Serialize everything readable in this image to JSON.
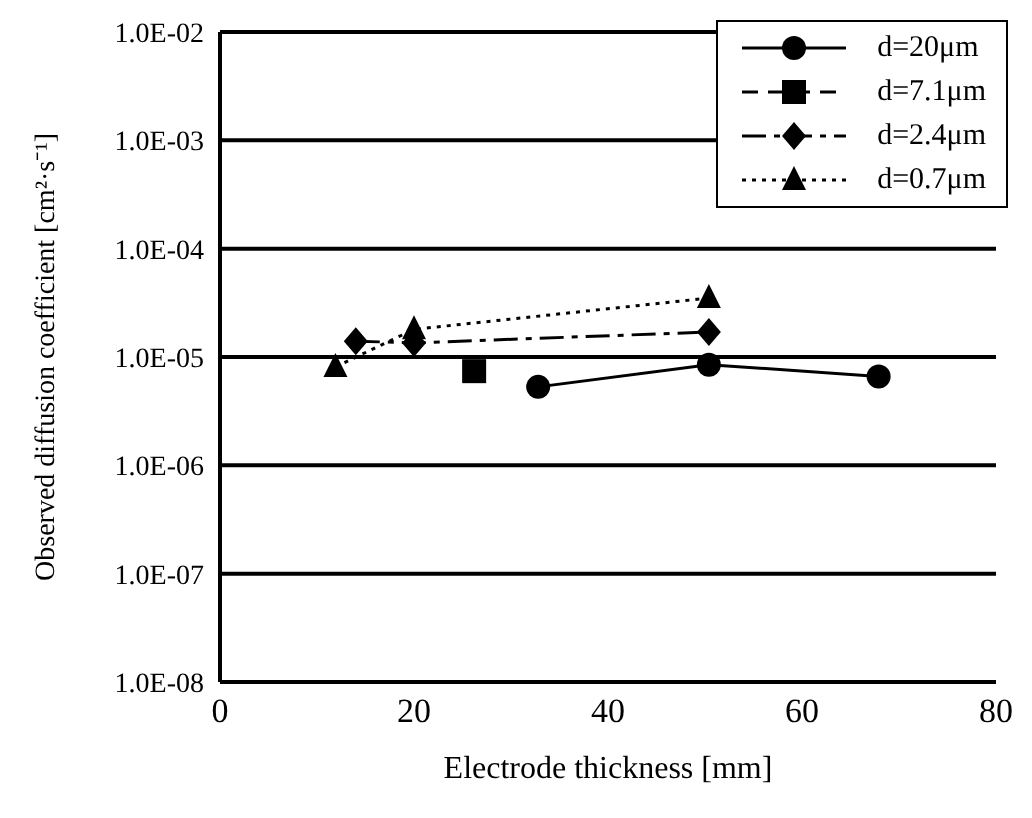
{
  "chart_data": {
    "type": "line",
    "xlabel": "Electrode thickness [mm]",
    "ylabel": "Observed diffusion coefficient [cm²·s⁻¹]",
    "xlim": [
      0,
      80
    ],
    "xticks": [
      0,
      20,
      40,
      60,
      80
    ],
    "ylim": [
      1e-08,
      0.01
    ],
    "log": "y",
    "yticks": [
      {
        "value": 1e-08,
        "label": "1.0E-08"
      },
      {
        "value": 1e-07,
        "label": "1.0E-07"
      },
      {
        "value": 1e-06,
        "label": "1.0E-06"
      },
      {
        "value": 1e-05,
        "label": "1.0E-05"
      },
      {
        "value": 0.0001,
        "label": "1.0E-04"
      },
      {
        "value": 0.001,
        "label": "1.0E-03"
      },
      {
        "value": 0.01,
        "label": "1.0E-02"
      }
    ],
    "grid": "y",
    "legend": "top right",
    "series": [
      {
        "name": "d=20μm",
        "color": "#000000",
        "marker": "circle",
        "line_style": "solid",
        "x": [
          32.8,
          50.4,
          67.9
        ],
        "values": [
          5.3e-06,
          8.5e-06,
          6.6e-06
        ]
      },
      {
        "name": "d=7.1μm",
        "color": "#000000",
        "marker": "square",
        "line_style": "dashed",
        "x": [
          26.2
        ],
        "values": [
          7.4e-06
        ]
      },
      {
        "name": "d=2.4μm",
        "color": "#000000",
        "marker": "diamond",
        "line_style": "dashdot",
        "x": [
          14.0,
          20.0,
          50.4
        ],
        "values": [
          1.4e-05,
          1.35e-05,
          1.7e-05
        ]
      },
      {
        "name": "d=0.7μm",
        "color": "#000000",
        "marker": "triangle",
        "line_style": "dotted",
        "x": [
          11.9,
          20.0,
          50.4
        ],
        "values": [
          8.1e-06,
          1.8e-05,
          3.5e-05
        ]
      }
    ]
  }
}
